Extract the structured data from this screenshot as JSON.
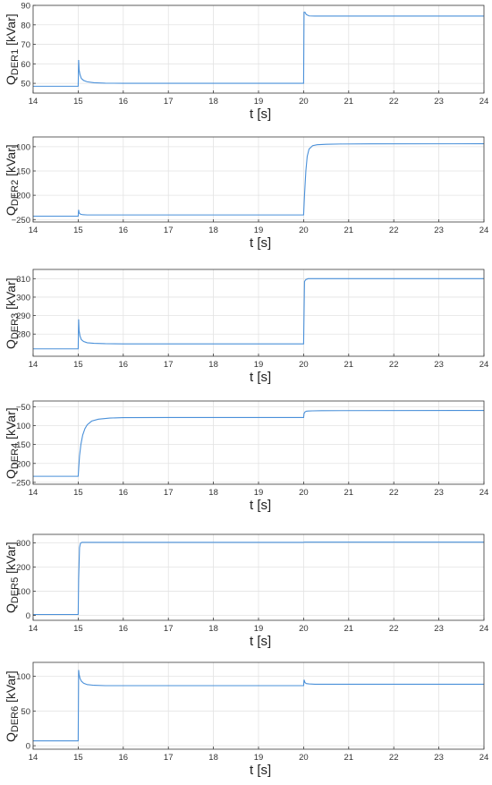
{
  "chart_data": [
    {
      "type": "line",
      "ylabel_main": "Q",
      "ylabel_sub": "DER1",
      "ylabel_unit": "[kVar]",
      "xlabel": "t [s]",
      "xlim": [
        14,
        24
      ],
      "ylim": [
        45,
        90
      ],
      "xticks": [
        14,
        15,
        16,
        17,
        18,
        19,
        20,
        21,
        22,
        23,
        24
      ],
      "yticks": [
        50,
        60,
        70,
        80,
        90
      ],
      "grid": true,
      "series": [
        {
          "color": "#4a90d9",
          "x": [
            14,
            15,
            15.01,
            15.02,
            15.04,
            15.07,
            15.12,
            15.2,
            15.35,
            15.6,
            16,
            20,
            20.01,
            20.03,
            20.06,
            20.12,
            20.25,
            24
          ],
          "y": [
            48.5,
            48.5,
            62,
            57,
            54.5,
            52.5,
            51.5,
            50.8,
            50.3,
            50.1,
            50,
            50,
            86.5,
            86.5,
            85.3,
            84.6,
            84.5,
            84.5
          ]
        }
      ]
    },
    {
      "type": "line",
      "ylabel_main": "Q",
      "ylabel_sub": "DER2",
      "ylabel_unit": "[kVar]",
      "xlabel": "t [s]",
      "xlim": [
        14,
        24
      ],
      "ylim": [
        -255,
        -80
      ],
      "xticks": [
        14,
        15,
        16,
        17,
        18,
        19,
        20,
        21,
        22,
        23,
        24
      ],
      "yticks": [
        -250,
        -200,
        -150,
        -100
      ],
      "grid": true,
      "series": [
        {
          "color": "#4a90d9",
          "x": [
            14,
            15,
            15.01,
            15.02,
            15.05,
            15.1,
            15.2,
            15.4,
            20,
            20.02,
            20.05,
            20.08,
            20.12,
            20.2,
            20.3,
            20.5,
            20.8,
            21.5,
            24
          ],
          "y": [
            -243,
            -243,
            -230,
            -236,
            -239,
            -240,
            -240.5,
            -240.5,
            -240.5,
            -200,
            -150,
            -120,
            -105,
            -98,
            -96,
            -95,
            -94.5,
            -94.2,
            -94
          ]
        }
      ]
    },
    {
      "type": "line",
      "ylabel_main": "Q",
      "ylabel_sub": "DER3",
      "ylabel_unit": "[kVar]",
      "xlabel": "t [s]",
      "xlim": [
        14,
        24
      ],
      "ylim": [
        268,
        315
      ],
      "xticks": [
        14,
        15,
        16,
        17,
        18,
        19,
        20,
        21,
        22,
        23,
        24
      ],
      "yticks": [
        280,
        290,
        300,
        310
      ],
      "grid": true,
      "series": [
        {
          "color": "#4a90d9",
          "x": [
            14,
            15,
            15.01,
            15.02,
            15.04,
            15.07,
            15.12,
            15.2,
            15.35,
            15.6,
            16,
            20,
            20.02,
            20.05,
            20.1,
            20.2,
            24
          ],
          "y": [
            272,
            272,
            288,
            282,
            279,
            277,
            276,
            275.3,
            275,
            274.8,
            274.7,
            274.7,
            308.5,
            309.5,
            310,
            310,
            310
          ]
        }
      ]
    },
    {
      "type": "line",
      "ylabel_main": "Q",
      "ylabel_sub": "DER4",
      "ylabel_unit": "[kVar]",
      "xlabel": "t [s]",
      "xlim": [
        14,
        24
      ],
      "ylim": [
        -255,
        -35
      ],
      "xticks": [
        14,
        15,
        16,
        17,
        18,
        19,
        20,
        21,
        22,
        23,
        24
      ],
      "yticks": [
        -250,
        -200,
        -150,
        -100,
        -50
      ],
      "grid": true,
      "series": [
        {
          "color": "#4a90d9",
          "x": [
            14,
            15,
            15.01,
            15.03,
            15.06,
            15.1,
            15.15,
            15.2,
            15.3,
            15.45,
            15.7,
            16,
            17,
            20,
            20.01,
            20.03,
            20.06,
            20.1,
            20.2,
            20.4,
            24
          ],
          "y": [
            -234,
            -234,
            -215,
            -180,
            -150,
            -125,
            -108,
            -98,
            -88,
            -83,
            -80,
            -79,
            -78.5,
            -78.5,
            -68,
            -64,
            -62,
            -61.5,
            -61,
            -60.5,
            -60
          ]
        }
      ]
    },
    {
      "type": "line",
      "ylabel_main": "Q",
      "ylabel_sub": "DER5",
      "ylabel_unit": "[kVar]",
      "xlabel": "t [s]",
      "xlim": [
        14,
        24
      ],
      "ylim": [
        -20,
        335
      ],
      "xticks": [
        14,
        15,
        16,
        17,
        18,
        19,
        20,
        21,
        22,
        23,
        24
      ],
      "yticks": [
        0,
        100,
        200,
        300
      ],
      "grid": true,
      "series": [
        {
          "color": "#4a90d9",
          "x": [
            14,
            15,
            15.01,
            15.03,
            15.05,
            15.08,
            15.12,
            20,
            20.02,
            24
          ],
          "y": [
            4,
            4,
            150,
            280,
            298,
            302,
            302,
            302,
            303,
            303
          ]
        }
      ]
    },
    {
      "type": "line",
      "ylabel_main": "Q",
      "ylabel_sub": "DER6",
      "ylabel_unit": "[kVar]",
      "xlabel": "t [s]",
      "xlim": [
        14,
        24
      ],
      "ylim": [
        -5,
        120
      ],
      "xticks": [
        14,
        15,
        16,
        17,
        18,
        19,
        20,
        21,
        22,
        23,
        24
      ],
      "yticks": [
        0,
        50,
        100
      ],
      "grid": true,
      "series": [
        {
          "color": "#4a90d9",
          "x": [
            14,
            15,
            15.01,
            15.02,
            15.04,
            15.07,
            15.12,
            15.2,
            15.35,
            15.6,
            16,
            20,
            20.01,
            20.03,
            20.06,
            20.12,
            20.25,
            24
          ],
          "y": [
            7,
            7,
            109,
            103,
            97,
            93,
            90,
            88,
            87,
            86.5,
            86.5,
            86.5,
            95,
            91,
            89.5,
            89,
            88.5,
            88.5
          ]
        }
      ]
    }
  ]
}
